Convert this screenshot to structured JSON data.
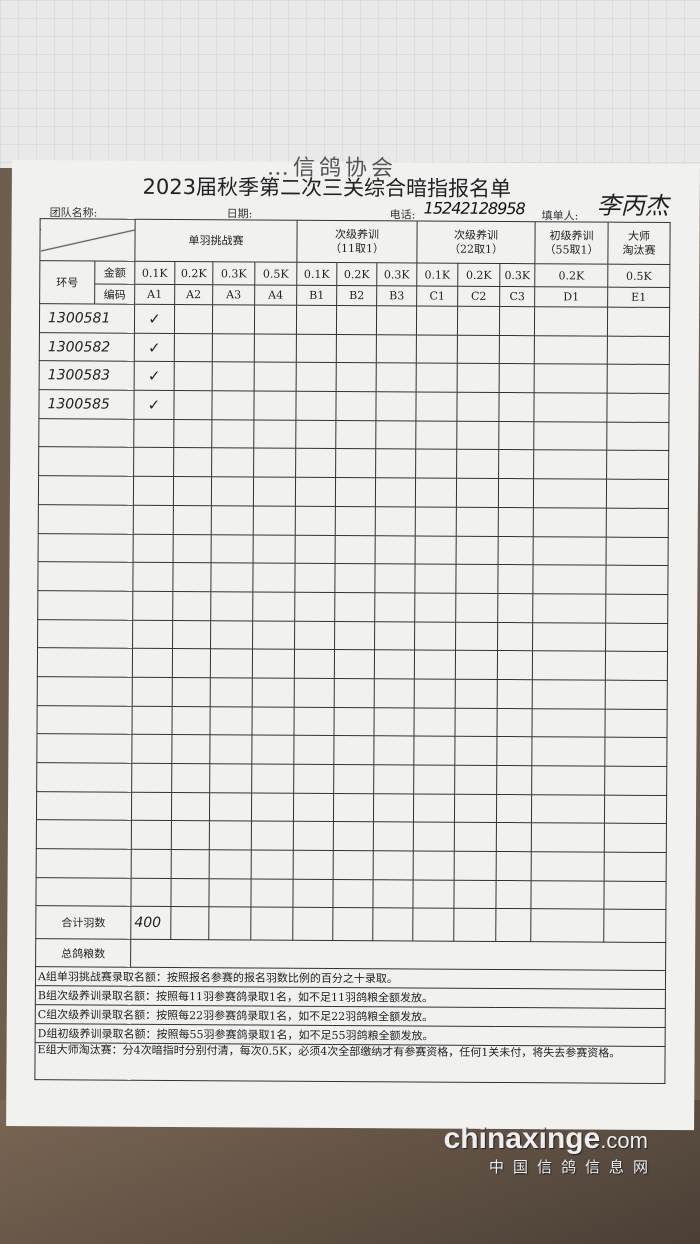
{
  "document": {
    "organization_partial": "…信鸽协会",
    "title": "2023届秋季第二次三关综合暗指报名单",
    "team_label": "团队名称:",
    "date_label": "日期:",
    "phone_label": "电话:",
    "phone_value": "15242128958",
    "filler_label": "填单人:",
    "filler_signature": "李丙杰"
  },
  "table": {
    "ring_label": "环号",
    "amount_label": "金额",
    "code_label": "编码",
    "groups": [
      {
        "label": "单羽挑战赛",
        "sub": ""
      },
      {
        "label": "次级养训",
        "sub": "（11取1）"
      },
      {
        "label": "次级养训",
        "sub": "（22取1）"
      },
      {
        "label": "初级养训",
        "sub": "（55取1）"
      },
      {
        "label": "大师",
        "sub": "淘汰赛"
      }
    ],
    "amounts": [
      "0.1K",
      "0.2K",
      "0.3K",
      "0.5K",
      "0.1K",
      "0.2K",
      "0.3K",
      "0.1K",
      "0.2K",
      "0.3K",
      "0.2K",
      "0.5K"
    ],
    "codes": [
      "A1",
      "A2",
      "A3",
      "A4",
      "B1",
      "B2",
      "B3",
      "C1",
      "C2",
      "C3",
      "D1",
      "E1"
    ],
    "check_mark": "✓",
    "entries": [
      {
        "ring": "1300581",
        "selected": [
          "A1"
        ]
      },
      {
        "ring": "1300582",
        "selected": [
          "A1"
        ]
      },
      {
        "ring": "1300583",
        "selected": [
          "A1"
        ]
      },
      {
        "ring": "1300585",
        "selected": [
          "A1"
        ]
      }
    ],
    "total_label": "合计羽数",
    "total_A1": "400",
    "feed_label": "总鸽粮数"
  },
  "notes": [
    "A组单羽挑战赛录取名额：按照报名参赛的报名羽数比例的百分之十录取。",
    "B组次级养训录取名额：按照每11羽参赛鸽录取1名，如不足11羽鸽粮全额发放。",
    "C组次级养训录取名额：按照每22羽参赛鸽录取1名，如不足22羽鸽粮全额发放。",
    "D组初级养训录取名额：按照每55羽参赛鸽录取1名，如不足55羽鸽粮全额发放。",
    "E组大师淘汰赛：分4次暗指时分别付清，每次0.5K，必须4次全部缴纳才有参赛资格，任何1关未付，将失去参赛资格。"
  ],
  "watermark": {
    "domain": "chinaxinge",
    "tld": ".com",
    "cn": "中国信鸽信息网"
  }
}
